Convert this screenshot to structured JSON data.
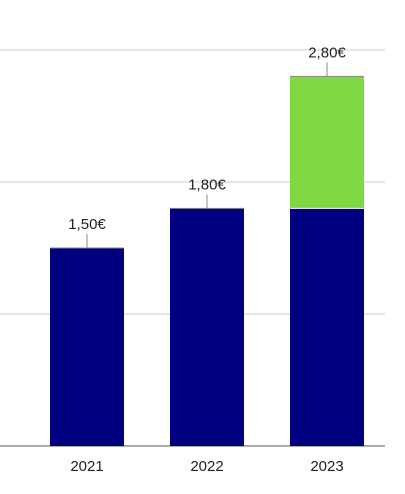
{
  "chart_data": {
    "type": "stacked-bar",
    "categories": [
      "2021",
      "2022",
      "2023"
    ],
    "series": [
      {
        "color": "#000080",
        "values": [
          1.5,
          1.8,
          1.8
        ]
      },
      {
        "color": "#80d840",
        "values": [
          null,
          null,
          1.0
        ]
      }
    ],
    "totals": [
      1.5,
      1.8,
      2.8
    ],
    "total_labels": [
      "1,50€",
      "1,80€",
      "2,80€"
    ],
    "ylim": [
      0,
      3
    ],
    "yticks": [
      0,
      1,
      2,
      3
    ],
    "grid": true
  }
}
